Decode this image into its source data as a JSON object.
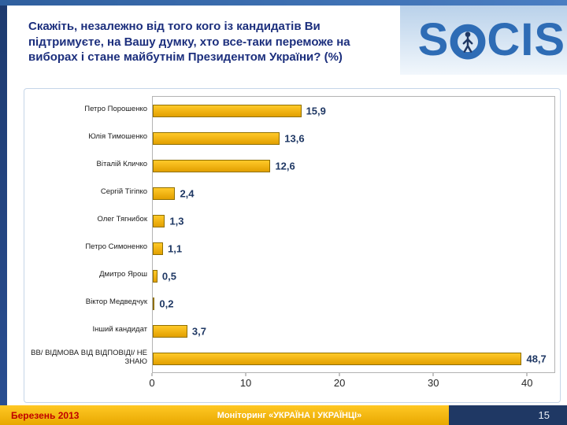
{
  "slide": {
    "title": "Скажіть, незалежно від того кого із кандидатів Ви підтримуєте, на Вашу думку, хто все-таки переможе на виборах і стане майбутнім Президентом України? (%)",
    "logo": {
      "brand": "SOCIS",
      "part_before_o": "S",
      "part_after_o": "CIS"
    },
    "footer": {
      "date": "Березень 2013",
      "monitor": "Моніторинг «УКРАЇНА І УКРАЇНЦІ»",
      "page_number": "15"
    },
    "colors": {
      "title_navy": "#1c2f7d",
      "logo_blue": "#2e6cb5",
      "bar_gold": "#eda900",
      "footer_gold": "#f0b400",
      "footer_date_red": "#c00000",
      "page_box_navy": "#1f3864",
      "value_label_navy": "#1f3864"
    }
  },
  "chart_data": {
    "type": "bar",
    "orientation": "horizontal",
    "title": "Скажіть, незалежно від того кого із кандидатів Ви підтримуєте, на Вашу думку, хто все-таки переможе на виборах і стане майбутнім Президентом України? (%)",
    "categories": [
      "Петро Порошенко",
      "Юлія Тимошенко",
      "Віталій Кличко",
      "Сергій Тігіпко",
      "Олег Тягнибок",
      "Петро Симоненко",
      "Дмитро Ярош",
      "Віктор Медведчук",
      "Інший кандидат",
      "ВВ/ ВІДМОВА ВІД ВІДПОВІДІ/ НЕ ЗНАЮ"
    ],
    "values": [
      15.9,
      13.6,
      12.6,
      2.4,
      1.3,
      1.1,
      0.5,
      0.2,
      3.7,
      48.7
    ],
    "value_labels": [
      "15,9",
      "13,6",
      "12,6",
      "2,4",
      "1,3",
      "1,1",
      "0,5",
      "0,2",
      "3,7",
      "48,7"
    ],
    "xlabel": "",
    "ylabel": "",
    "xlim": [
      0,
      40
    ],
    "xticks": [
      0,
      10,
      20,
      30,
      40
    ],
    "grid": false,
    "legend": "none",
    "bar_color": "#eda900"
  }
}
